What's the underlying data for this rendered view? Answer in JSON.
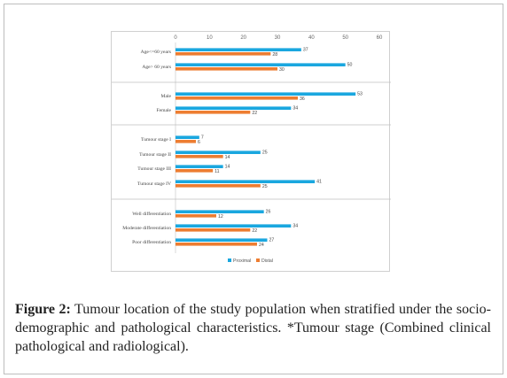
{
  "caption": {
    "label": "Figure 2:",
    "text": "Tumour location of the study population when stratified under the socio-demographic and pathological characteristics. *Tumour stage (Combined clinical pathological and radiological)."
  },
  "chart_data": {
    "type": "bar",
    "orientation": "horizontal",
    "xlim": [
      0,
      60
    ],
    "ticks": [
      0,
      10,
      20,
      30,
      40,
      50,
      60
    ],
    "grid": false,
    "legend_position": "bottom",
    "colors": {
      "proximal": "#1aa7df",
      "distal": "#ed7d31"
    },
    "groups": [
      {
        "categories": [
          "Age<=60 years",
          "Age> 60 years"
        ]
      },
      {
        "categories": [
          "Male",
          "Female"
        ]
      },
      {
        "categories": [
          "Tumour stage I",
          "Tumour stage II",
          "Tumour stage III",
          "Tumour stage IV"
        ]
      },
      {
        "categories": [
          "Well differentiation",
          "Moderate differentiation",
          "Poor differentiation"
        ]
      }
    ],
    "series": [
      {
        "name": "Proximal",
        "values": [
          37,
          50,
          53,
          34,
          7,
          25,
          14,
          41,
          26,
          34,
          27
        ]
      },
      {
        "name": "Distal",
        "values": [
          28,
          30,
          36,
          22,
          6,
          14,
          11,
          25,
          12,
          22,
          24
        ]
      }
    ]
  }
}
